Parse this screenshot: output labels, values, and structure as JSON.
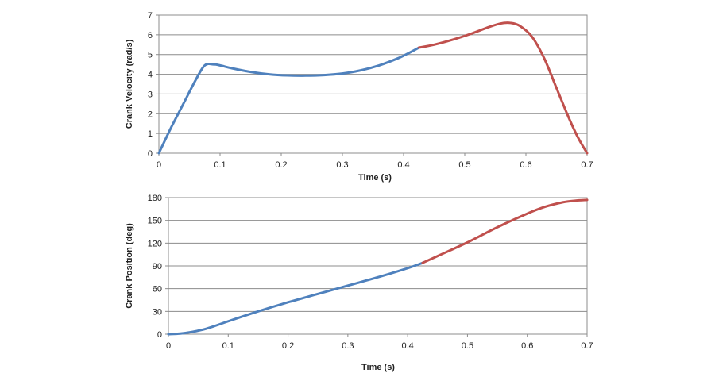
{
  "chart_data": [
    {
      "type": "line",
      "xlabel": "Time (s)",
      "ylabel": "Crank Velocity (rad/s)",
      "xlim": [
        0,
        0.7
      ],
      "ylim": [
        0,
        7
      ],
      "xticks": [
        "0",
        "0.1",
        "0.2",
        "0.3",
        "0.4",
        "0.5",
        "0.6",
        "0.7"
      ],
      "yticks": [
        "0",
        "1",
        "2",
        "3",
        "4",
        "5",
        "6",
        "7"
      ],
      "grid": "horizontal",
      "legend": "none",
      "series": [
        {
          "color": "#4f81bd",
          "x": [
            0,
            0.02,
            0.04,
            0.06,
            0.075,
            0.09,
            0.1,
            0.12,
            0.15,
            0.18,
            0.21,
            0.24,
            0.27,
            0.3,
            0.33,
            0.36,
            0.39,
            0.41,
            0.425
          ],
          "y": [
            0,
            1.3,
            2.5,
            3.7,
            4.45,
            4.5,
            4.45,
            4.3,
            4.12,
            4.0,
            3.94,
            3.93,
            3.96,
            4.04,
            4.2,
            4.45,
            4.8,
            5.1,
            5.35
          ]
        },
        {
          "color": "#c0504d",
          "x": [
            0.425,
            0.45,
            0.48,
            0.51,
            0.54,
            0.56,
            0.575,
            0.59,
            0.61,
            0.63,
            0.65,
            0.67,
            0.685,
            0.7
          ],
          "y": [
            5.35,
            5.5,
            5.75,
            6.05,
            6.4,
            6.58,
            6.6,
            6.45,
            5.9,
            4.8,
            3.3,
            1.8,
            0.8,
            0
          ]
        }
      ]
    },
    {
      "type": "line",
      "xlabel": "Time (s)",
      "ylabel": "Crank Position (deg)",
      "xlim": [
        0,
        0.7
      ],
      "ylim": [
        0,
        180
      ],
      "xticks": [
        "0",
        "0.1",
        "0.2",
        "0.3",
        "0.4",
        "0.5",
        "0.6",
        "0.7"
      ],
      "yticks": [
        "0",
        "30",
        "60",
        "90",
        "120",
        "150",
        "180"
      ],
      "grid": "horizontal",
      "legend": "none",
      "series": [
        {
          "color": "#4f81bd",
          "x": [
            0,
            0.02,
            0.04,
            0.06,
            0.08,
            0.1,
            0.15,
            0.2,
            0.25,
            0.3,
            0.35,
            0.4,
            0.425
          ],
          "y": [
            0,
            0.8,
            3,
            6.5,
            11.5,
            17,
            30,
            42,
            53,
            64,
            75,
            87,
            94
          ]
        },
        {
          "color": "#c0504d",
          "x": [
            0.425,
            0.45,
            0.5,
            0.55,
            0.6,
            0.63,
            0.66,
            0.68,
            0.7
          ],
          "y": [
            94,
            103,
            121,
            141,
            159,
            168,
            174,
            176,
            177
          ]
        }
      ]
    }
  ]
}
